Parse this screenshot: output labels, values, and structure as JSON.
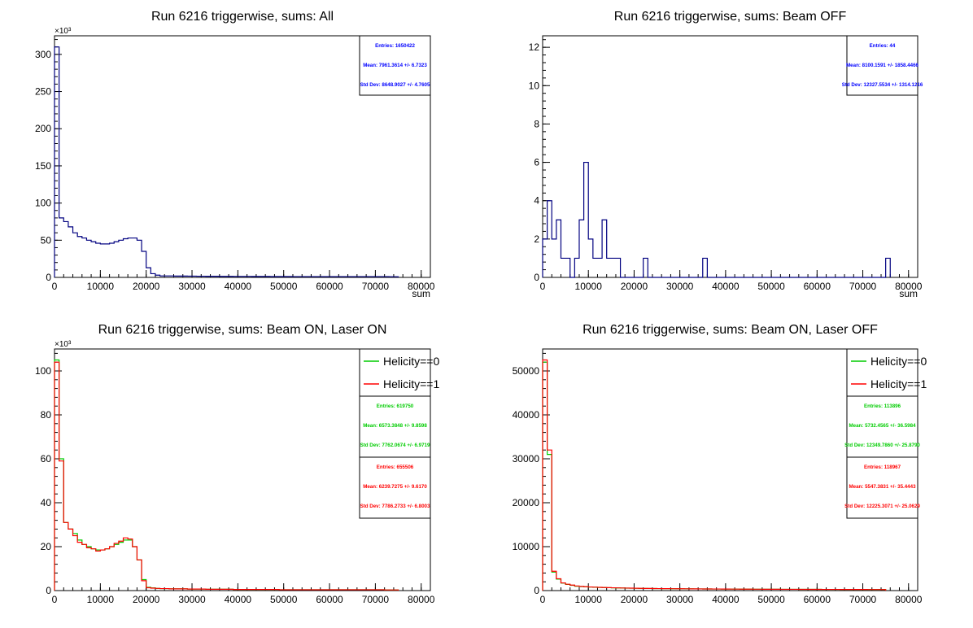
{
  "chart_data": [
    {
      "type": "histogram",
      "title": "Run 6216 triggerwise, sums: All",
      "xlabel": "sum",
      "ylabel": "",
      "y_multiplier": "×10³",
      "xlim": [
        0,
        82000
      ],
      "ylim": [
        0,
        325
      ],
      "x_ticks": [
        "0",
        "10000",
        "20000",
        "30000",
        "40000",
        "50000",
        "60000",
        "70000",
        "80000"
      ],
      "y_ticks": [
        "0",
        "50",
        "100",
        "150",
        "200",
        "250",
        "300"
      ],
      "bin_width": 1000,
      "stats": [
        {
          "color": "#0000ff",
          "lines": [
            "Entries:  1650422",
            "Mean:  7961.3614 +/- 6.7323",
            "Std Dev:  8648.9027 +/- 4.7605"
          ]
        }
      ],
      "series": [
        {
          "color": "#000080",
          "values": [
            310,
            80,
            75,
            68,
            60,
            55,
            53,
            50,
            48,
            46,
            45,
            45,
            46,
            48,
            50,
            52,
            53,
            53,
            50,
            35,
            13,
            5,
            3,
            2,
            2,
            2,
            1.8,
            1.8,
            1.8,
            1.7,
            1.7,
            1.6,
            1.6,
            1.5,
            1.5,
            1.5,
            1.4,
            1.4,
            1.4,
            1.3,
            1.3,
            1.3,
            1.3,
            1.2,
            1.2,
            1.2,
            1.2,
            1.1,
            1.1,
            1.1,
            1.1,
            1.1,
            1,
            1,
            1,
            1,
            1,
            1,
            1,
            1,
            1,
            1,
            1,
            1,
            1,
            1,
            1,
            1,
            1,
            1,
            1,
            1,
            1,
            0.9,
            0.9
          ]
        }
      ]
    },
    {
      "type": "histogram",
      "title": "Run 6216 triggerwise, sums: Beam OFF",
      "xlabel": "sum",
      "ylabel": "",
      "y_multiplier": "",
      "xlim": [
        0,
        82000
      ],
      "ylim": [
        0,
        12.6
      ],
      "x_ticks": [
        "0",
        "10000",
        "20000",
        "30000",
        "40000",
        "50000",
        "60000",
        "70000",
        "80000"
      ],
      "y_ticks": [
        "0",
        "2",
        "4",
        "6",
        "8",
        "10",
        "12"
      ],
      "bin_width": 1000,
      "stats": [
        {
          "color": "#0000ff",
          "lines": [
            "Entries:  44",
            "Mean:  8100.1591 +/- 1858.4466",
            "Std Dev:  12327.5534 +/- 1314.1216"
          ]
        }
      ],
      "series": [
        {
          "color": "#000080",
          "values": [
            2,
            4,
            2,
            3,
            1,
            1,
            0,
            1,
            3,
            6,
            2,
            1,
            1,
            3,
            1,
            1,
            1,
            0,
            0,
            0,
            0,
            0,
            1,
            0,
            0,
            0,
            0,
            0,
            0,
            0,
            0,
            0,
            0,
            0,
            0,
            1,
            0,
            0,
            0,
            0,
            0,
            0,
            0,
            0,
            0,
            0,
            0,
            0,
            0,
            0,
            0,
            0,
            0,
            0,
            0,
            0,
            0,
            0,
            0,
            0,
            0,
            0,
            0,
            0,
            0,
            0,
            0,
            0,
            0,
            0,
            0,
            0,
            0,
            0,
            0,
            1
          ]
        }
      ]
    },
    {
      "type": "histogram",
      "title": "Run 6216 triggerwise, sums: Beam ON, Laser ON",
      "xlabel": "",
      "ylabel": "",
      "y_multiplier": "×10³",
      "xlim": [
        0,
        82000
      ],
      "ylim": [
        0,
        110
      ],
      "x_ticks": [
        "0",
        "10000",
        "20000",
        "30000",
        "40000",
        "50000",
        "60000",
        "70000",
        "80000"
      ],
      "y_ticks": [
        "0",
        "20",
        "40",
        "60",
        "80",
        "100"
      ],
      "bin_width": 1000,
      "legend": {
        "position": "top-right",
        "entries": [
          {
            "label": "Helicity==0",
            "color": "#00cc00"
          },
          {
            "label": "Helicity==1",
            "color": "#ff0000"
          }
        ]
      },
      "stats": [
        {
          "color": "#00cc00",
          "lines": [
            "Entries:  619750",
            "Mean:  6573.3848 +/- 9.8598",
            "Std Dev:  7762.0674 +/- 6.9719"
          ]
        },
        {
          "color": "#ff0000",
          "lines": [
            "Entries:  655506",
            "Mean:  6239.7275 +/- 9.6170",
            "Std Dev:  7786.2733 +/- 6.8003"
          ]
        }
      ],
      "series": [
        {
          "name": "Helicity==0",
          "color": "#00cc00",
          "values": [
            105,
            60,
            31,
            28,
            26,
            23,
            21,
            20,
            19,
            18.5,
            18.5,
            19,
            20,
            21,
            22,
            23,
            23,
            20,
            14,
            5,
            1.5,
            1.2,
            1,
            0.9,
            0.9,
            0.8,
            0.8,
            0.8,
            0.8,
            0.7,
            0.7,
            0.7,
            0.7,
            0.6,
            0.6,
            0.6,
            0.6,
            0.6,
            0.6,
            0.5,
            0.5,
            0.5,
            0.5,
            0.5,
            0.5,
            0.5,
            0.5,
            0.5,
            0.5,
            0.4,
            0.4,
            0.4,
            0.4,
            0.4,
            0.4,
            0.4,
            0.4,
            0.4,
            0.4,
            0.4,
            0.4,
            0.4,
            0.4,
            0.4,
            0.4,
            0.4,
            0.4,
            0.4,
            0.4,
            0.4,
            0.4,
            0.4,
            0.3,
            0.3,
            0.3
          ]
        },
        {
          "name": "Helicity==1",
          "color": "#ff0000",
          "values": [
            104,
            59,
            31,
            28,
            25,
            22,
            21,
            19.5,
            19,
            18,
            18.5,
            19,
            20,
            21.5,
            22.5,
            24,
            23.5,
            20,
            14,
            4.5,
            1.3,
            1.1,
            1,
            0.9,
            0.9,
            0.8,
            0.8,
            0.8,
            0.8,
            0.7,
            0.7,
            0.7,
            0.7,
            0.6,
            0.6,
            0.6,
            0.6,
            0.6,
            0.6,
            0.5,
            0.5,
            0.5,
            0.5,
            0.5,
            0.5,
            0.5,
            0.5,
            0.5,
            0.5,
            0.4,
            0.4,
            0.4,
            0.4,
            0.4,
            0.4,
            0.4,
            0.4,
            0.4,
            0.4,
            0.4,
            0.4,
            0.4,
            0.4,
            0.4,
            0.4,
            0.4,
            0.4,
            0.4,
            0.4,
            0.4,
            0.4,
            0.4,
            0.3,
            0.3,
            0.3
          ]
        }
      ]
    },
    {
      "type": "histogram",
      "title": "Run 6216 triggerwise, sums: Beam ON, Laser OFF",
      "xlabel": "",
      "ylabel": "",
      "y_multiplier": "",
      "xlim": [
        0,
        82000
      ],
      "ylim": [
        0,
        55000
      ],
      "x_ticks": [
        "0",
        "10000",
        "20000",
        "30000",
        "40000",
        "50000",
        "60000",
        "70000",
        "80000"
      ],
      "y_ticks": [
        "0",
        "10000",
        "20000",
        "30000",
        "40000",
        "50000"
      ],
      "bin_width": 1000,
      "legend": {
        "position": "top-right",
        "entries": [
          {
            "label": "Helicity==0",
            "color": "#00cc00"
          },
          {
            "label": "Helicity==1",
            "color": "#ff0000"
          }
        ]
      },
      "stats": [
        {
          "color": "#00cc00",
          "lines": [
            "Entries:  113896",
            "Mean:  5732.4565 +/- 36.5984",
            "Std Dev:  12349.7860 +/- 25.8790"
          ]
        },
        {
          "color": "#ff0000",
          "lines": [
            "Entries:  118967",
            "Mean:  5547.3831 +/- 35.4443",
            "Std Dev:  12225.3071 +/- 25.0629"
          ]
        }
      ],
      "series": [
        {
          "name": "Helicity==0",
          "color": "#00cc00",
          "values": [
            52000,
            31000,
            4200,
            2600,
            1700,
            1400,
            1200,
            1000,
            900,
            850,
            800,
            760,
            720,
            690,
            660,
            630,
            600,
            580,
            560,
            540,
            520,
            500,
            480,
            470,
            460,
            450,
            440,
            430,
            420,
            410,
            405,
            400,
            390,
            385,
            380,
            375,
            370,
            360,
            355,
            350,
            345,
            340,
            335,
            330,
            325,
            320,
            315,
            310,
            305,
            300,
            298,
            295,
            292,
            290,
            288,
            285,
            282,
            280,
            278,
            275,
            272,
            270,
            268,
            265,
            262,
            260,
            258,
            255,
            252,
            250,
            248,
            245,
            242,
            240,
            235
          ]
        },
        {
          "name": "Helicity==1",
          "color": "#ff0000",
          "values": [
            52500,
            32000,
            4400,
            2700,
            1750,
            1450,
            1250,
            1050,
            950,
            880,
            820,
            780,
            740,
            700,
            670,
            640,
            610,
            590,
            570,
            550,
            530,
            510,
            490,
            480,
            465,
            455,
            445,
            435,
            425,
            415,
            410,
            402,
            395,
            388,
            382,
            376,
            370,
            362,
            356,
            350,
            345,
            340,
            335,
            330,
            325,
            320,
            315,
            310,
            305,
            300,
            298,
            295,
            292,
            290,
            288,
            285,
            282,
            280,
            278,
            275,
            272,
            270,
            268,
            265,
            262,
            260,
            258,
            255,
            252,
            250,
            248,
            245,
            242,
            240,
            235
          ]
        }
      ]
    }
  ]
}
